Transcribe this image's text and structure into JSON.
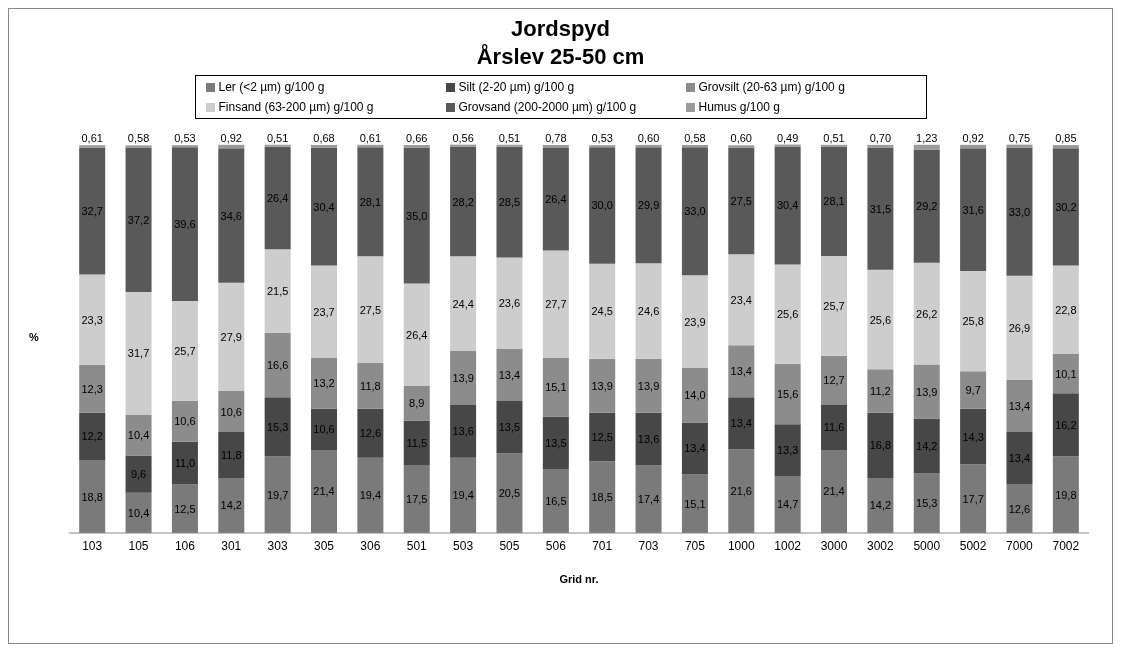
{
  "chart_data": {
    "type": "bar",
    "stacked": true,
    "title": "Jordspyd",
    "subtitle": "Årslev 25-50 cm",
    "xlabel": "Grid nr.",
    "ylabel": "%",
    "legend": "top",
    "tick_labels": "x",
    "ylim": [
      0,
      101
    ],
    "categories": [
      "103",
      "105",
      "106",
      "301",
      "303",
      "305",
      "306",
      "501",
      "503",
      "505",
      "506",
      "701",
      "703",
      "705",
      "1000",
      "1002",
      "3000",
      "3002",
      "5000",
      "5002",
      "7000",
      "7002"
    ],
    "series": [
      {
        "name": "Ler (<2 µm) g/100 g",
        "color": "#7a7a7a",
        "values": [
          18.8,
          10.4,
          12.5,
          14.2,
          19.7,
          21.4,
          19.4,
          17.5,
          19.4,
          20.5,
          16.5,
          18.5,
          17.4,
          15.1,
          21.6,
          14.7,
          21.4,
          14.2,
          15.3,
          17.7,
          12.6,
          19.8
        ],
        "value_labels": [
          "18,8",
          "10,4",
          "12,5",
          "14,2",
          "19,7",
          "21,4",
          "19,4",
          "17,5",
          "19,4",
          "20,5",
          "16,5",
          "18,5",
          "17,4",
          "15,1",
          "21,6",
          "14,7",
          "21,4",
          "14,2",
          "15,3",
          "17,7",
          "12,6",
          "19,8"
        ]
      },
      {
        "name": "Silt (2-20 µm) g/100 g",
        "color": "#474747",
        "values": [
          12.2,
          9.6,
          11.0,
          11.8,
          15.3,
          10.6,
          12.6,
          11.5,
          13.6,
          13.5,
          13.5,
          12.5,
          13.6,
          13.4,
          13.4,
          13.3,
          11.6,
          16.8,
          14.2,
          14.3,
          13.4,
          16.2
        ],
        "value_labels": [
          "12,2",
          "9,6",
          "11,0",
          "11,8",
          "15,3",
          "10,6",
          "12,6",
          "11,5",
          "13,6",
          "13,5",
          "13,5",
          "12,5",
          "13,6",
          "13,4",
          "13,4",
          "13,3",
          "11,6",
          "16,8",
          "14,2",
          "14,3",
          "13,4",
          "16,2"
        ]
      },
      {
        "name": "Grovsilt (20-63 µm) g/100 g",
        "color": "#8c8c8c",
        "values": [
          12.3,
          10.4,
          10.6,
          10.6,
          16.6,
          13.2,
          11.8,
          8.9,
          13.9,
          13.4,
          15.1,
          13.9,
          13.9,
          14.0,
          13.4,
          15.6,
          12.7,
          11.2,
          13.9,
          9.7,
          13.4,
          10.1
        ],
        "value_labels": [
          "12,3",
          "10,4",
          "10,6",
          "10,6",
          "16,6",
          "13,2",
          "11,8",
          "8,9",
          "13,9",
          "13,4",
          "15,1",
          "13,9",
          "13,9",
          "14,0",
          "13,4",
          "15,6",
          "12,7",
          "11,2",
          "13,9",
          "9,7",
          "13,4",
          "10,1"
        ]
      },
      {
        "name": "Finsand (63-200 µm) g/100 g",
        "color": "#cdcdcd",
        "values": [
          23.3,
          31.7,
          25.7,
          27.9,
          21.5,
          23.7,
          27.5,
          26.4,
          24.4,
          23.6,
          27.7,
          24.5,
          24.6,
          23.9,
          23.4,
          25.6,
          25.7,
          25.6,
          26.2,
          25.8,
          26.9,
          22.8
        ],
        "value_labels": [
          "23,3",
          "31,7",
          "25,7",
          "27,9",
          "21,5",
          "23,7",
          "27,5",
          "26,4",
          "24,4",
          "23,6",
          "27,7",
          "24,5",
          "24,6",
          "23,9",
          "23,4",
          "25,6",
          "25,7",
          "25,6",
          "26,2",
          "25,8",
          "26,9",
          "22,8"
        ]
      },
      {
        "name": "Grovsand (200-2000 µm) g/100 g",
        "color": "#595959",
        "values": [
          32.7,
          37.2,
          39.6,
          34.6,
          26.4,
          30.4,
          28.1,
          35.0,
          28.2,
          28.5,
          26.4,
          30.0,
          29.9,
          33.0,
          27.5,
          30.4,
          28.1,
          31.5,
          29.2,
          31.6,
          33.0,
          30.2
        ],
        "value_labels": [
          "32,7",
          "37,2",
          "39,6",
          "34,6",
          "26,4",
          "30,4",
          "28,1",
          "35,0",
          "28,2",
          "28,5",
          "26,4",
          "30,0",
          "29,9",
          "33,0",
          "27,5",
          "30,4",
          "28,1",
          "31,5",
          "29,2",
          "31,6",
          "33,0",
          "30,2"
        ]
      },
      {
        "name": "Humus g/100 g",
        "color": "#9a9a9a",
        "values": [
          0.61,
          0.58,
          0.53,
          0.92,
          0.51,
          0.68,
          0.61,
          0.66,
          0.56,
          0.51,
          0.78,
          0.53,
          0.6,
          0.58,
          0.6,
          0.49,
          0.51,
          0.7,
          1.23,
          0.92,
          0.75,
          0.85
        ],
        "value_labels": [
          "0,61",
          "0,58",
          "0,53",
          "0,92",
          "0,51",
          "0,68",
          "0,61",
          "0,66",
          "0,56",
          "0,51",
          "0,78",
          "0,53",
          "0,60",
          "0,58",
          "0,60",
          "0,49",
          "0,51",
          "0,70",
          "1,23",
          "0,92",
          "0,75",
          "0,85"
        ]
      }
    ]
  }
}
